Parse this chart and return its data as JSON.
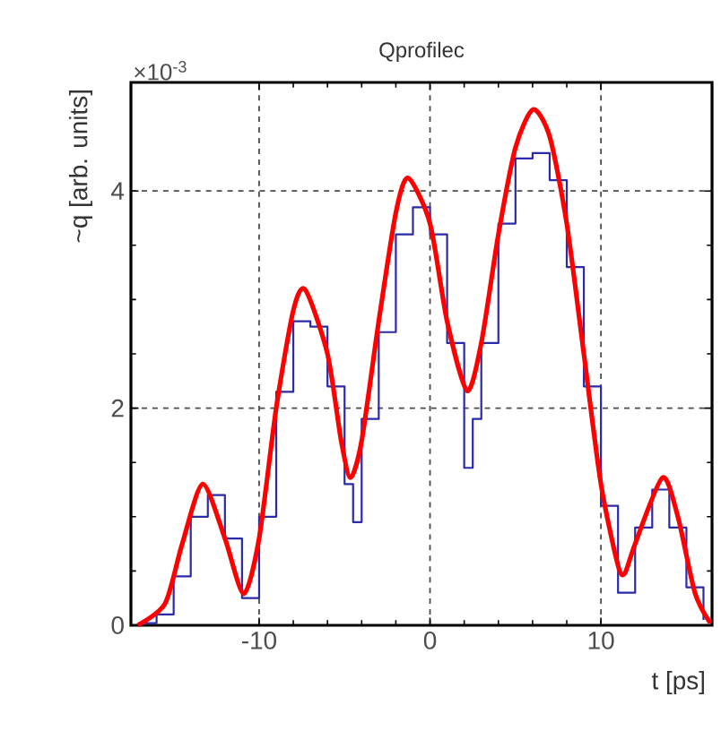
{
  "chart_data": {
    "type": "line",
    "title": "Qprofilec",
    "xlabel": "t [ps]",
    "ylabel": "~q [arb. units]",
    "annotations": [
      "×10$^{-3}$"
    ],
    "xlim": [
      -17.5,
      16.5
    ],
    "ylim": [
      0,
      5
    ],
    "xticks": [
      -10,
      0,
      10
    ],
    "yticks": [
      0,
      2,
      4
    ],
    "grid": true,
    "series": [
      {
        "type": "step",
        "color": "#2a2aaa",
        "x": [
          -17,
          -16,
          -15,
          -14,
          -13,
          -12,
          -11,
          -10,
          -9,
          -8,
          -7,
          -6,
          -5,
          -4.5,
          -4,
          -3,
          -2,
          -1,
          0,
          1,
          2,
          2.5,
          3,
          4,
          5,
          6,
          7,
          8,
          9,
          10,
          11,
          12,
          13,
          14,
          15,
          16
        ],
        "values": [
          0.02,
          0.1,
          0.45,
          1.0,
          1.2,
          0.8,
          0.25,
          1.0,
          2.15,
          2.8,
          2.75,
          2.2,
          1.3,
          0.95,
          1.9,
          2.7,
          3.6,
          3.85,
          3.6,
          2.6,
          1.45,
          1.9,
          2.6,
          3.7,
          4.3,
          4.35,
          4.1,
          3.3,
          2.2,
          1.1,
          0.3,
          0.9,
          1.25,
          0.9,
          0.35,
          0.05
        ]
      },
      {
        "color": "#ff0000",
        "x": [
          -17.1,
          -15.5,
          -14.5,
          -13.3,
          -12,
          -10.9,
          -10,
          -9,
          -8,
          -7.3,
          -6,
          -5.2,
          -4.65,
          -4,
          -3,
          -2,
          -1.28,
          0,
          1,
          2.17,
          3,
          4,
          5,
          6.03,
          7,
          8,
          9,
          10,
          11,
          11.4,
          12,
          13.6,
          14.5,
          15.5,
          16.4
        ],
        "values": [
          0,
          0.2,
          0.75,
          1.3,
          0.8,
          0.29,
          0.8,
          2.0,
          2.9,
          3.09,
          2.5,
          1.7,
          1.36,
          1.7,
          2.8,
          3.8,
          4.12,
          3.7,
          2.8,
          2.16,
          2.6,
          3.6,
          4.4,
          4.75,
          4.5,
          3.7,
          2.5,
          1.3,
          0.55,
          0.48,
          0.75,
          1.36,
          1.0,
          0.3,
          0.02
        ]
      }
    ]
  }
}
